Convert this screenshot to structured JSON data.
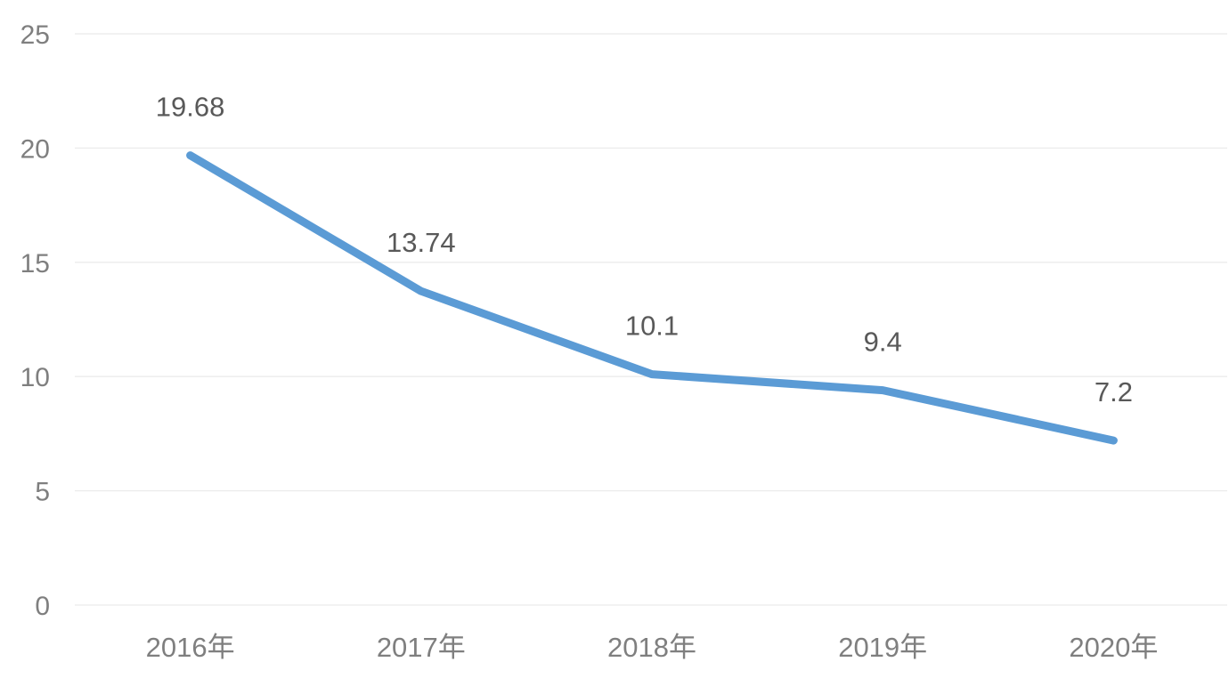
{
  "chart_data": {
    "type": "line",
    "title": "",
    "xlabel": "",
    "ylabel": "",
    "categories": [
      "2016年",
      "2017年",
      "2018年",
      "2019年",
      "2020年"
    ],
    "series": [
      {
        "values": [
          19.68,
          13.74,
          10.1,
          9.4,
          7.2
        ],
        "labels": [
          "19.68",
          "13.74",
          "10.1",
          "9.4",
          "7.2"
        ],
        "color": "#5b9bd5"
      }
    ],
    "ylim": [
      0,
      25
    ],
    "yticks": [
      "0",
      "5",
      "10",
      "15",
      "20",
      "25"
    ],
    "grid": true,
    "legend": "none"
  }
}
